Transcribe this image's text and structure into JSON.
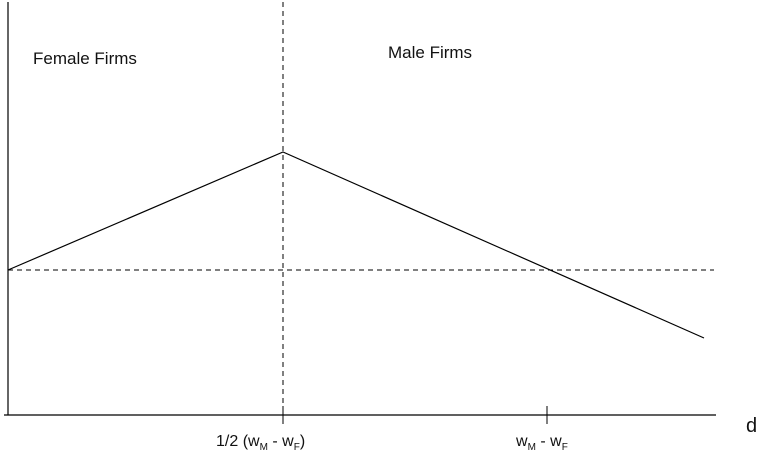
{
  "diagram": {
    "region_left_label": "Female Firms",
    "region_right_label": "Male Firms",
    "x_axis_label": "d",
    "tick_1": {
      "prefix": "1/2 (w",
      "sub_1": "M",
      "middle": " - w",
      "sub_2": "F",
      "suffix": ")"
    },
    "tick_2": {
      "prefix": "w",
      "sub_1": "M",
      "middle": " - w",
      "sub_2": "F"
    }
  }
}
